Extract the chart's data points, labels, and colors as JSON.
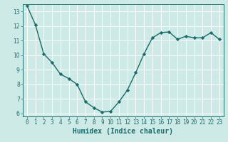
{
  "x": [
    0,
    1,
    2,
    3,
    4,
    5,
    6,
    7,
    8,
    9,
    10,
    11,
    12,
    13,
    14,
    15,
    16,
    17,
    18,
    19,
    20,
    21,
    22,
    23
  ],
  "y": [
    13.4,
    12.1,
    10.1,
    9.5,
    8.7,
    8.4,
    8.0,
    6.8,
    6.4,
    6.1,
    6.15,
    6.8,
    7.6,
    8.8,
    10.1,
    11.2,
    11.55,
    11.6,
    11.1,
    11.3,
    11.2,
    11.2,
    11.55,
    11.1
  ],
  "line_color": "#1a6b6b",
  "marker": "D",
  "marker_size": 2.2,
  "bg_color": "#ceeae7",
  "grid_color": "#ffffff",
  "xlabel": "Humidex (Indice chaleur)",
  "ylabel": "",
  "ylim": [
    5.8,
    13.5
  ],
  "xlim": [
    -0.5,
    23.5
  ],
  "yticks": [
    6,
    7,
    8,
    9,
    10,
    11,
    12,
    13
  ],
  "xticks": [
    0,
    1,
    2,
    3,
    4,
    5,
    6,
    7,
    8,
    9,
    10,
    11,
    12,
    13,
    14,
    15,
    16,
    17,
    18,
    19,
    20,
    21,
    22,
    23
  ],
  "tick_fontsize": 5.5,
  "label_fontsize": 7.0,
  "linewidth": 1.0
}
